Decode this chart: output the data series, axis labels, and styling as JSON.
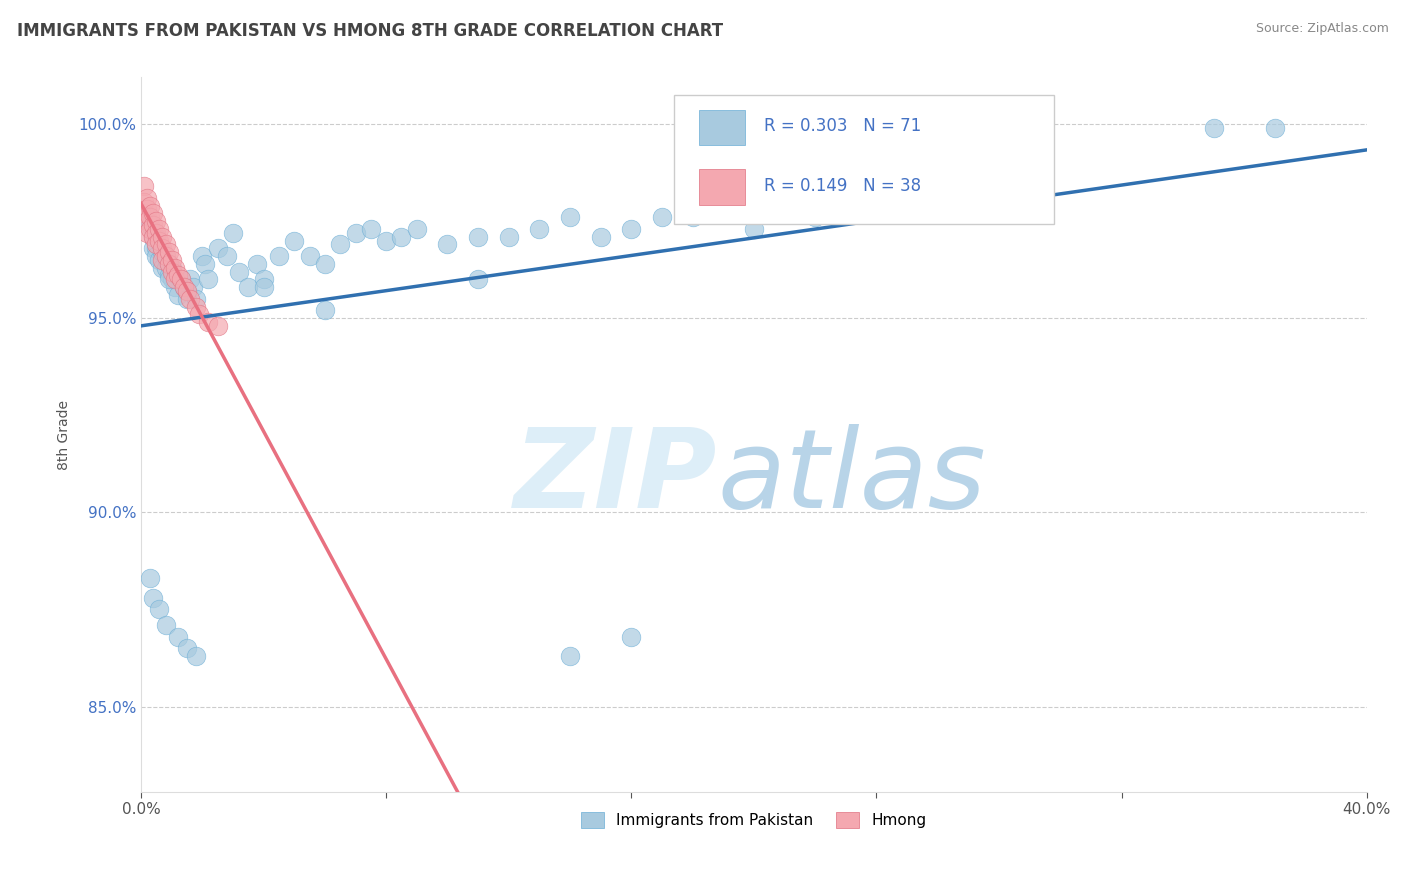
{
  "title": "IMMIGRANTS FROM PAKISTAN VS HMONG 8TH GRADE CORRELATION CHART",
  "source": "Source: ZipAtlas.com",
  "ylabel": "8th Grade",
  "xlim": [
    0.0,
    0.4
  ],
  "ylim": [
    0.828,
    1.012
  ],
  "xticks": [
    0.0,
    0.08,
    0.16,
    0.24,
    0.32,
    0.4
  ],
  "xticklabels": [
    "0.0%",
    "",
    "",
    "",
    "",
    "40.0%"
  ],
  "yticks": [
    0.85,
    0.9,
    0.95,
    1.0
  ],
  "grid_color": "#cccccc",
  "background_color": "#ffffff",
  "title_color": "#444444",
  "title_fontsize": 12,
  "R_blue": 0.303,
  "N_blue": 71,
  "R_pink": 0.149,
  "N_pink": 38,
  "legend_blue_label": "Immigrants from Pakistan",
  "legend_pink_label": "Hmong",
  "scatter_blue_color": "#a8cadf",
  "scatter_pink_color": "#f4a8b0",
  "scatter_blue_edge": "#6baed6",
  "scatter_pink_edge": "#e07080",
  "trendline_blue_color": "#3070b0",
  "trendline_pink_color": "#e87080",
  "blue_x": [
    0.002,
    0.003,
    0.004,
    0.004,
    0.005,
    0.005,
    0.006,
    0.007,
    0.007,
    0.008,
    0.008,
    0.009,
    0.009,
    0.01,
    0.01,
    0.011,
    0.012,
    0.013,
    0.014,
    0.015,
    0.015,
    0.016,
    0.017,
    0.018,
    0.02,
    0.021,
    0.022,
    0.025,
    0.028,
    0.03,
    0.032,
    0.035,
    0.038,
    0.04,
    0.045,
    0.05,
    0.055,
    0.06,
    0.065,
    0.07,
    0.075,
    0.08,
    0.085,
    0.09,
    0.1,
    0.11,
    0.12,
    0.13,
    0.14,
    0.15,
    0.16,
    0.17,
    0.18,
    0.2,
    0.22,
    0.003,
    0.004,
    0.006,
    0.008,
    0.012,
    0.015,
    0.018,
    0.009,
    0.04,
    0.06,
    0.11,
    0.14,
    0.16,
    0.35,
    0.37,
    0.005
  ],
  "blue_y": [
    0.976,
    0.974,
    0.971,
    0.968,
    0.968,
    0.966,
    0.965,
    0.967,
    0.963,
    0.966,
    0.963,
    0.964,
    0.961,
    0.963,
    0.96,
    0.958,
    0.956,
    0.96,
    0.958,
    0.957,
    0.955,
    0.96,
    0.958,
    0.955,
    0.966,
    0.964,
    0.96,
    0.968,
    0.966,
    0.972,
    0.962,
    0.958,
    0.964,
    0.96,
    0.966,
    0.97,
    0.966,
    0.964,
    0.969,
    0.972,
    0.973,
    0.97,
    0.971,
    0.973,
    0.969,
    0.971,
    0.971,
    0.973,
    0.976,
    0.971,
    0.973,
    0.976,
    0.976,
    0.973,
    0.976,
    0.883,
    0.878,
    0.875,
    0.871,
    0.868,
    0.865,
    0.863,
    0.96,
    0.958,
    0.952,
    0.96,
    0.863,
    0.868,
    0.999,
    0.999,
    0.971
  ],
  "pink_x": [
    0.001,
    0.001,
    0.001,
    0.002,
    0.002,
    0.002,
    0.002,
    0.003,
    0.003,
    0.003,
    0.004,
    0.004,
    0.004,
    0.005,
    0.005,
    0.005,
    0.006,
    0.006,
    0.007,
    0.007,
    0.007,
    0.008,
    0.008,
    0.009,
    0.009,
    0.01,
    0.01,
    0.011,
    0.011,
    0.012,
    0.013,
    0.014,
    0.015,
    0.016,
    0.018,
    0.019,
    0.022,
    0.025
  ],
  "pink_y": [
    0.984,
    0.98,
    0.977,
    0.981,
    0.978,
    0.975,
    0.972,
    0.979,
    0.976,
    0.973,
    0.977,
    0.974,
    0.971,
    0.975,
    0.972,
    0.969,
    0.973,
    0.97,
    0.971,
    0.968,
    0.965,
    0.969,
    0.966,
    0.967,
    0.964,
    0.965,
    0.962,
    0.963,
    0.96,
    0.961,
    0.96,
    0.958,
    0.957,
    0.955,
    0.953,
    0.951,
    0.949,
    0.948
  ]
}
